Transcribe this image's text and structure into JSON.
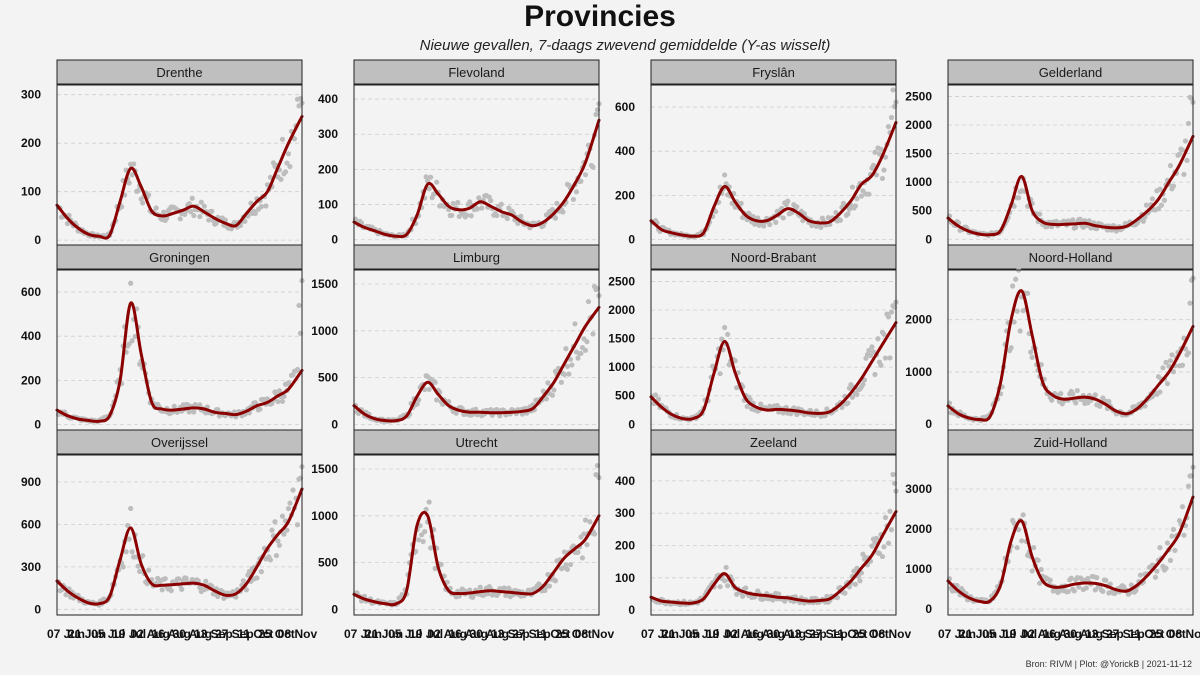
{
  "header": {
    "title": "Provincies",
    "subtitle": "Nieuwe gevallen, 7-daags zwevend gemiddelde  (Y-as wisselt)"
  },
  "footer": {
    "caption": "Bron: RIVM | Plot: @YorickB |  2021-11-12"
  },
  "colors": {
    "line": "#8b0000",
    "points": "#bdbdbd",
    "strip": "#bfbfbf",
    "panel": "#f3f3f3",
    "grid": "#cfcfcf"
  },
  "chart_data": {
    "type": "line",
    "x_ticks": [
      "07 Jun",
      "21 Jun",
      "05 Jul",
      "19 Jul",
      "02 Aug",
      "16 Aug",
      "30 Aug",
      "13 Sep",
      "27 Sep",
      "11 Oct",
      "25 Oct",
      "08 Nov"
    ],
    "x_tick_display": [
      "07 Jun",
      "21 Jun",
      "05 Jul",
      "19 Jul",
      "02 Aug",
      "16 Aug",
      "30 Aug",
      "13 Sep",
      "27 Sep",
      "11 Oct",
      "25 Oct",
      "08 Nov"
    ],
    "x_tick_labels_rendered": "07 21 Jun05 Jul19 Jul02 Aug16 Aug30 Aug13 Sep27 Sep11 Oct25 Oct08 Nov",
    "x_range": [
      "2021-06-01",
      "2021-11-11"
    ],
    "grid": true,
    "panels": [
      {
        "name": "Drenthe",
        "yticks": [
          0,
          100,
          200,
          300
        ],
        "ylim": [
          -10,
          320
        ],
        "days": [
          0,
          7,
          14,
          21,
          28,
          35,
          42,
          49,
          56,
          63,
          70,
          77,
          84,
          91,
          98,
          105,
          112,
          119,
          126,
          133,
          140,
          147,
          154,
          163
        ],
        "values": [
          72,
          45,
          25,
          12,
          8,
          10,
          80,
          148,
          110,
          60,
          50,
          55,
          62,
          70,
          58,
          45,
          35,
          30,
          55,
          80,
          100,
          150,
          200,
          255
        ],
        "scatter_max": 295
      },
      {
        "name": "Flevoland",
        "yticks": [
          0,
          100,
          200,
          300,
          400
        ],
        "ylim": [
          -15,
          440
        ],
        "days": [
          0,
          7,
          14,
          21,
          28,
          35,
          42,
          49,
          56,
          63,
          70,
          77,
          84,
          91,
          98,
          105,
          112,
          119,
          126,
          133,
          140,
          147,
          154,
          163
        ],
        "values": [
          50,
          35,
          25,
          15,
          10,
          15,
          70,
          158,
          130,
          95,
          85,
          90,
          108,
          95,
          80,
          70,
          50,
          40,
          50,
          75,
          110,
          160,
          220,
          340
        ],
        "scatter_max": 420
      },
      {
        "name": "Fryslân",
        "yticks": [
          0,
          200,
          400,
          600
        ],
        "ylim": [
          -25,
          700
        ],
        "days": [
          0,
          7,
          14,
          21,
          28,
          35,
          42,
          49,
          56,
          63,
          70,
          77,
          84,
          91,
          98,
          105,
          112,
          119,
          126,
          133,
          140,
          147,
          154,
          163
        ],
        "values": [
          85,
          45,
          30,
          20,
          15,
          30,
          150,
          240,
          170,
          110,
          85,
          85,
          110,
          140,
          120,
          85,
          75,
          80,
          120,
          175,
          250,
          290,
          380,
          530
        ],
        "scatter_max": 690
      },
      {
        "name": "Gelderland",
        "yticks": [
          0,
          500,
          1000,
          1500,
          2000,
          2500
        ],
        "ylim": [
          -100,
          2700
        ],
        "days": [
          0,
          7,
          14,
          21,
          28,
          35,
          42,
          49,
          56,
          63,
          70,
          77,
          84,
          91,
          98,
          105,
          112,
          119,
          126,
          133,
          140,
          147,
          154,
          163
        ],
        "values": [
          370,
          230,
          140,
          90,
          80,
          150,
          600,
          1100,
          500,
          300,
          260,
          260,
          270,
          280,
          240,
          210,
          200,
          230,
          350,
          500,
          700,
          1000,
          1300,
          1800
        ],
        "scatter_max": 2500
      },
      {
        "name": "Groningen",
        "yticks": [
          0,
          200,
          400,
          600
        ],
        "ylim": [
          -25,
          700
        ],
        "days": [
          0,
          7,
          14,
          21,
          28,
          35,
          42,
          49,
          56,
          63,
          70,
          77,
          84,
          91,
          98,
          105,
          112,
          119,
          126,
          133,
          140,
          147,
          154,
          163
        ],
        "values": [
          65,
          40,
          25,
          18,
          15,
          40,
          200,
          550,
          320,
          100,
          70,
          65,
          70,
          75,
          70,
          55,
          50,
          45,
          60,
          85,
          100,
          130,
          160,
          245
        ],
        "scatter_max": 670
      },
      {
        "name": "Limburg",
        "yticks": [
          0,
          500,
          1000,
          1500
        ],
        "ylim": [
          -60,
          1650
        ],
        "days": [
          0,
          7,
          14,
          21,
          28,
          35,
          42,
          49,
          56,
          63,
          70,
          77,
          84,
          91,
          98,
          105,
          112,
          119,
          126,
          133,
          140,
          147,
          154,
          163
        ],
        "values": [
          200,
          110,
          60,
          40,
          40,
          90,
          300,
          450,
          320,
          200,
          150,
          130,
          130,
          125,
          125,
          130,
          140,
          170,
          300,
          450,
          650,
          850,
          1050,
          1250
        ],
        "scatter_max": 1480
      },
      {
        "name": "Noord-Brabant",
        "yticks": [
          0,
          500,
          1000,
          1500,
          2000,
          2500
        ],
        "ylim": [
          -100,
          2700
        ],
        "days": [
          0,
          7,
          14,
          21,
          28,
          35,
          42,
          49,
          56,
          63,
          70,
          77,
          84,
          91,
          98,
          105,
          112,
          119,
          126,
          133,
          140,
          147,
          154,
          163
        ],
        "values": [
          480,
          300,
          170,
          100,
          100,
          250,
          900,
          1450,
          900,
          450,
          300,
          250,
          260,
          250,
          230,
          200,
          190,
          220,
          350,
          550,
          800,
          1100,
          1400,
          1780
        ],
        "scatter_max": 2450
      },
      {
        "name": "Noord-Holland",
        "yticks": [
          0,
          1000,
          2000
        ],
        "ylim": [
          -110,
          2950
        ],
        "days": [
          0,
          7,
          14,
          21,
          28,
          35,
          42,
          49,
          56,
          63,
          70,
          77,
          84,
          91,
          98,
          105,
          112,
          119,
          126,
          133,
          140,
          147,
          154,
          163
        ],
        "values": [
          350,
          200,
          120,
          90,
          150,
          800,
          2000,
          2550,
          1700,
          800,
          550,
          480,
          500,
          520,
          480,
          380,
          250,
          200,
          300,
          500,
          750,
          1000,
          1350,
          1870
        ],
        "scatter_max": 2800
      },
      {
        "name": "Overijssel",
        "yticks": [
          0,
          300,
          600,
          900
        ],
        "ylim": [
          -40,
          1090
        ],
        "days": [
          0,
          7,
          14,
          21,
          28,
          35,
          42,
          49,
          56,
          63,
          70,
          77,
          84,
          91,
          98,
          105,
          112,
          119,
          126,
          133,
          140,
          147,
          154,
          163
        ],
        "values": [
          200,
          130,
          80,
          45,
          40,
          90,
          350,
          575,
          320,
          180,
          170,
          175,
          180,
          185,
          170,
          130,
          100,
          110,
          180,
          300,
          430,
          530,
          620,
          850
        ],
        "scatter_max": 1070
      },
      {
        "name": "Utrecht",
        "yticks": [
          0,
          500,
          1000,
          1500
        ],
        "ylim": [
          -60,
          1650
        ],
        "days": [
          0,
          7,
          14,
          21,
          28,
          35,
          42,
          49,
          56,
          63,
          70,
          77,
          84,
          91,
          98,
          105,
          112,
          119,
          126,
          133,
          140,
          147,
          154,
          163
        ],
        "values": [
          160,
          110,
          80,
          60,
          60,
          200,
          900,
          1000,
          450,
          200,
          170,
          175,
          190,
          200,
          190,
          180,
          170,
          170,
          250,
          400,
          550,
          650,
          750,
          1000
        ],
        "scatter_max": 1550
      },
      {
        "name": "Zeeland",
        "yticks": [
          0,
          100,
          200,
          300,
          400
        ],
        "ylim": [
          -15,
          480
        ],
        "days": [
          0,
          7,
          14,
          21,
          28,
          35,
          42,
          49,
          56,
          63,
          70,
          77,
          84,
          91,
          98,
          105,
          112,
          119,
          126,
          133,
          140,
          147,
          154,
          163
        ],
        "values": [
          40,
          28,
          25,
          22,
          22,
          35,
          80,
          113,
          70,
          55,
          48,
          45,
          40,
          38,
          32,
          28,
          30,
          35,
          60,
          90,
          130,
          170,
          230,
          305
        ],
        "scatter_max": 435
      },
      {
        "name": "Zuid-Holland",
        "yticks": [
          0,
          1000,
          2000,
          3000
        ],
        "ylim": [
          -150,
          3850
        ],
        "days": [
          0,
          7,
          14,
          21,
          28,
          35,
          42,
          49,
          56,
          63,
          70,
          77,
          84,
          91,
          98,
          105,
          112,
          119,
          126,
          133,
          140,
          147,
          154,
          163
        ],
        "values": [
          700,
          450,
          280,
          190,
          200,
          600,
          1700,
          2200,
          1300,
          700,
          550,
          560,
          620,
          650,
          640,
          580,
          480,
          450,
          600,
          850,
          1150,
          1500,
          1900,
          2800
        ],
        "scatter_max": 3650
      }
    ]
  }
}
